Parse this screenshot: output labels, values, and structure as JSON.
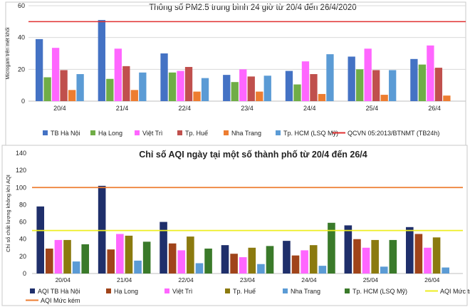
{
  "chart_data": [
    {
      "type": "bar",
      "title": "Thông số PM2.5 trung bình 24 giờ từ 20/4 đến 26/4/2020",
      "ylabel": "Microgam trên mét khối",
      "xlabel": "",
      "ylim": [
        0,
        60
      ],
      "yticks": [
        0,
        20,
        40,
        60
      ],
      "grid": true,
      "legend_position": "bottom",
      "categories": [
        "20/4",
        "21/4",
        "22/4",
        "23/4",
        "24/4",
        "25/4",
        "26/4"
      ],
      "series": [
        {
          "name": "TB Hà Nội",
          "color": "#4472C4",
          "values": [
            39,
            51,
            30,
            16.5,
            19,
            28,
            26.5
          ]
        },
        {
          "name": "Hạ Long",
          "color": "#70AD47",
          "values": [
            15,
            14,
            18,
            12,
            10.5,
            20,
            23
          ]
        },
        {
          "name": "Việt Trì",
          "color": "#FF66FF",
          "values": [
            33.5,
            33,
            19,
            20,
            25,
            33,
            35
          ]
        },
        {
          "name": "Tp. Huế",
          "color": "#C0504D",
          "values": [
            19.5,
            22,
            21.5,
            15.5,
            17,
            19.5,
            21
          ]
        },
        {
          "name": "Nha Trang",
          "color": "#ED7D31",
          "values": [
            7,
            7,
            6,
            6,
            4.5,
            4,
            3.5
          ]
        },
        {
          "name": "Tp. HCM (LSQ Mỹ)",
          "color": "#5B9BD5",
          "values": [
            17,
            18,
            14.5,
            16,
            29.5,
            19.5,
            null
          ]
        }
      ],
      "reference_lines": [
        {
          "name": "QCVN 05:2013/BTNMT (TB24h)",
          "value": 50,
          "color": "#E03030"
        }
      ]
    },
    {
      "type": "bar",
      "title": "Chỉ số AQI ngày tại một số thành phố từ 20/4 đến 26/4",
      "ylabel": "Chỉ số chất lượng không khí AQI",
      "xlabel": "",
      "ylim": [
        0,
        140
      ],
      "yticks": [
        0,
        20,
        40,
        60,
        80,
        100,
        120,
        140
      ],
      "grid": false,
      "legend_position": "bottom",
      "categories": [
        "20/04",
        "21/04",
        "22/04",
        "23/04",
        "24/04",
        "25/04",
        "26/04"
      ],
      "series": [
        {
          "name": "AQI TB Hà Nội",
          "color": "#1F2F6B",
          "values": [
            78,
            102,
            60,
            33,
            38,
            56,
            54
          ]
        },
        {
          "name": "Hạ Long",
          "color": "#A0441A",
          "values": [
            29,
            28,
            35,
            23,
            21,
            40,
            46
          ]
        },
        {
          "name": "Việt Trì",
          "color": "#FF66FF",
          "values": [
            39,
            46,
            27,
            19,
            27,
            30,
            30
          ]
        },
        {
          "name": "Tp. Huế",
          "color": "#8B7A0F",
          "values": [
            39,
            44,
            43,
            30,
            33,
            39,
            42
          ]
        },
        {
          "name": "Nha Trang",
          "color": "#5B9BD5",
          "values": [
            14,
            15,
            12,
            11,
            9,
            8,
            7
          ]
        },
        {
          "name": "Tp. HCM (LSQ Mỹ)",
          "color": "#3A7A2A",
          "values": [
            34,
            37,
            29,
            32,
            59,
            39,
            null
          ]
        }
      ],
      "reference_lines": [
        {
          "name": "AQI Mức trung bình",
          "value": 50,
          "color": "#EEEE22"
        },
        {
          "name": "AQI Mức kém",
          "value": 100,
          "color": "#ED7D31"
        }
      ]
    }
  ]
}
